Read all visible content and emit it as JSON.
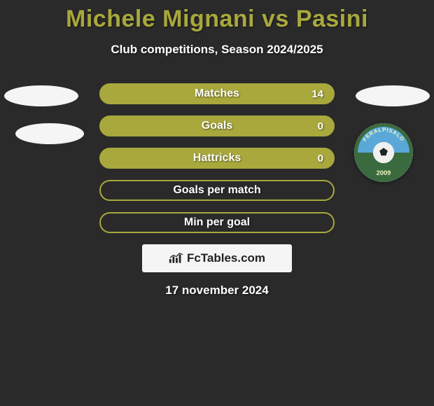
{
  "title": "Michele Mignani vs Pasini",
  "subtitle": "Club competitions, Season 2024/2025",
  "date": "17 november 2024",
  "branding": {
    "text": "FcTables.com"
  },
  "colors": {
    "accent": "#a8a83d",
    "background": "#2a2a2a",
    "text": "#ffffff",
    "panel": "#f5f5f5"
  },
  "stats": [
    {
      "label": "Matches",
      "value": "14",
      "filled": true
    },
    {
      "label": "Goals",
      "value": "0",
      "filled": true
    },
    {
      "label": "Hattricks",
      "value": "0",
      "filled": true
    },
    {
      "label": "Goals per match",
      "value": "",
      "filled": false
    },
    {
      "label": "Min per goal",
      "value": "",
      "filled": false
    }
  ],
  "crest": {
    "name": "feralpisalo-crest",
    "outer": "#3a6b3f",
    "inner_top": "#5aa8d8",
    "inner_bottom": "#3a6b3f",
    "ball": "#f0f0f0",
    "year": "2009",
    "text_top": "FERALPISALO"
  }
}
